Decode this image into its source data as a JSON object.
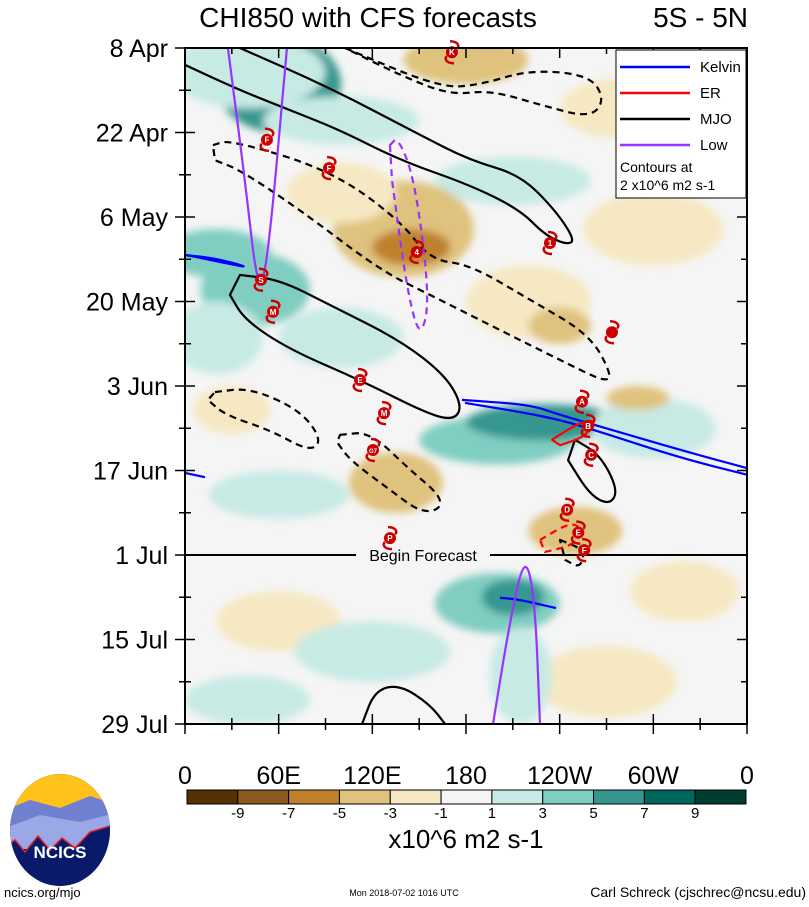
{
  "chart_data": {
    "type": "heatmap",
    "title": "CHI850 with CFS forecasts",
    "region": "5S - 5N",
    "xlabel": "",
    "ylabel": "",
    "xlim": [
      0,
      360
    ],
    "ylim_days_since_8Apr": [
      0,
      112
    ],
    "x_ticks": [
      {
        "lon": 0,
        "label": "0"
      },
      {
        "lon": 60,
        "label": "60E"
      },
      {
        "lon": 120,
        "label": "120E"
      },
      {
        "lon": 180,
        "label": "180"
      },
      {
        "lon": 240,
        "label": "120W"
      },
      {
        "lon": 300,
        "label": "60W"
      },
      {
        "lon": 360,
        "label": "0"
      }
    ],
    "y_ticks": [
      {
        "day": 0,
        "label": "8 Apr"
      },
      {
        "day": 14,
        "label": "22 Apr"
      },
      {
        "day": 28,
        "label": "6 May"
      },
      {
        "day": 42,
        "label": "20 May"
      },
      {
        "day": 56,
        "label": "3 Jun"
      },
      {
        "day": 70,
        "label": "17 Jun"
      },
      {
        "day": 84,
        "label": "1 Jul"
      },
      {
        "day": 98,
        "label": "15 Jul"
      },
      {
        "day": 112,
        "label": "29 Jul"
      }
    ],
    "forecast_start": {
      "day": 84,
      "label": "Begin Forecast"
    },
    "colorbar": {
      "units": "x10^6 m2 s-1",
      "levels": [
        "-9",
        "-7",
        "-5",
        "-3",
        "-1",
        "1",
        "3",
        "5",
        "7",
        "9"
      ],
      "colors": [
        "#543005",
        "#8c5a20",
        "#bf812d",
        "#dfc27d",
        "#f6e8c3",
        "#f5f5f5",
        "#c7eae5",
        "#80cdc1",
        "#35978f",
        "#01665e",
        "#003c30"
      ]
    },
    "legend": {
      "placement": "top-right",
      "entries": [
        {
          "label": "Kelvin",
          "color": "#0000ff"
        },
        {
          "label": "ER",
          "color": "#ff0000"
        },
        {
          "label": "MJO",
          "color": "#000000"
        },
        {
          "label": "Low",
          "color": "#9933ff"
        }
      ],
      "note_line1": "Contours at",
      "note_line2": "2 x10^6 m2 s-1"
    },
    "shaded_regions": [
      {
        "lon": 60,
        "day": 6,
        "dlon": 40,
        "dday": 8,
        "value": 6
      },
      {
        "lon": 40,
        "day": 4,
        "dlon": 50,
        "dday": 6,
        "value": 2
      },
      {
        "lon": 100,
        "day": 12,
        "dlon": 50,
        "dday": 4,
        "value": 2
      },
      {
        "lon": 20,
        "day": 34,
        "dlon": 35,
        "dday": 4,
        "value": 4
      },
      {
        "lon": 45,
        "day": 40,
        "dlon": 35,
        "dday": 6,
        "value": 4
      },
      {
        "lon": 100,
        "day": 48,
        "dlon": 40,
        "dday": 5,
        "value": 2
      },
      {
        "lon": 210,
        "day": 22,
        "dlon": 50,
        "dday": 4,
        "value": 2
      },
      {
        "lon": 20,
        "day": 48,
        "dlon": 30,
        "dday": 6,
        "value": 2
      },
      {
        "lon": 180,
        "day": 2,
        "dlon": 40,
        "dday": 4,
        "value": -4
      },
      {
        "lon": 280,
        "day": 10,
        "dlon": 40,
        "dday": 5,
        "value": -2
      },
      {
        "lon": 140,
        "day": 30,
        "dlon": 45,
        "dday": 8,
        "value": -4
      },
      {
        "lon": 145,
        "day": 33,
        "dlon": 25,
        "dday": 3,
        "value": -6
      },
      {
        "lon": 100,
        "day": 24,
        "dlon": 35,
        "dday": 5,
        "value": -2
      },
      {
        "lon": 220,
        "day": 42,
        "dlon": 40,
        "dday": 6,
        "value": -2
      },
      {
        "lon": 240,
        "day": 46,
        "dlon": 20,
        "dday": 3,
        "value": -4
      },
      {
        "lon": 300,
        "day": 30,
        "dlon": 45,
        "dday": 6,
        "value": -2
      },
      {
        "lon": 30,
        "day": 60,
        "dlon": 25,
        "dday": 4,
        "value": -2
      },
      {
        "lon": 135,
        "day": 72,
        "dlon": 30,
        "dday": 5,
        "value": -4
      },
      {
        "lon": 200,
        "day": 65,
        "dlon": 50,
        "dday": 4,
        "value": 4
      },
      {
        "lon": 230,
        "day": 62,
        "dlon": 50,
        "dday": 3,
        "value": 6
      },
      {
        "lon": 300,
        "day": 63,
        "dlon": 40,
        "dday": 5,
        "value": 2
      },
      {
        "lon": 290,
        "day": 58,
        "dlon": 20,
        "dday": 2,
        "value": -4
      },
      {
        "lon": 60,
        "day": 74,
        "dlon": 45,
        "dday": 4,
        "value": 2
      },
      {
        "lon": 250,
        "day": 80,
        "dlon": 30,
        "dday": 4,
        "value": -4
      },
      {
        "lon": 200,
        "day": 92,
        "dlon": 40,
        "dday": 5,
        "value": 4
      },
      {
        "lon": 210,
        "day": 91,
        "dlon": 20,
        "dday": 3,
        "value": 7
      },
      {
        "lon": 60,
        "day": 95,
        "dlon": 40,
        "dday": 5,
        "value": -2
      },
      {
        "lon": 320,
        "day": 90,
        "dlon": 35,
        "dday": 5,
        "value": -2
      },
      {
        "lon": 120,
        "day": 100,
        "dlon": 50,
        "dday": 5,
        "value": 2
      },
      {
        "lon": 270,
        "day": 105,
        "dlon": 45,
        "dday": 6,
        "value": -2
      },
      {
        "lon": 40,
        "day": 108,
        "dlon": 40,
        "dday": 4,
        "value": 2
      },
      {
        "lon": 215,
        "day": 104,
        "dlon": 20,
        "dday": 8,
        "value": 3
      }
    ],
    "contours": [
      {
        "type": "MJO",
        "dashed": false,
        "closed": false,
        "points": [
          [
            35.2,
            0
          ],
          [
            92.9,
            6.6
          ],
          [
            150.5,
            14.4
          ],
          [
            182.6,
            18.6
          ],
          [
            214.6,
            21.0
          ],
          [
            237.0,
            26.8
          ],
          [
            249.8,
            31.8
          ],
          [
            244.7,
            32.6
          ],
          [
            230.6,
            31.0
          ],
          [
            214.6,
            26.8
          ],
          [
            182.6,
            22.7
          ],
          [
            137.7,
            18.6
          ],
          [
            99.3,
            13.6
          ],
          [
            67.3,
            10.3
          ],
          [
            35.2,
            7.0
          ],
          [
            0,
            2.8
          ]
        ]
      },
      {
        "type": "MJO",
        "dashed": false,
        "closed": true,
        "points": [
          [
            35.2,
            37.6
          ],
          [
            60.9,
            38.4
          ],
          [
            92.9,
            42.6
          ],
          [
            137.7,
            48.4
          ],
          [
            166.6,
            54.2
          ],
          [
            177.4,
            59.1
          ],
          [
            173.0,
            61.6
          ],
          [
            157.0,
            60.8
          ],
          [
            112.1,
            55.0
          ],
          [
            67.3,
            50.0
          ],
          [
            38.4,
            45.1
          ],
          [
            28.8,
            40.9
          ]
        ]
      },
      {
        "type": "MJO",
        "dashed": false,
        "closed": true,
        "points": [
          [
            249.8,
            64.9
          ],
          [
            265.9,
            67.4
          ],
          [
            277.4,
            73.2
          ],
          [
            272.3,
            75.7
          ],
          [
            259.5,
            74.1
          ],
          [
            245.4,
            68.3
          ]
        ]
      },
      {
        "type": "MJO",
        "dashed": false,
        "closed": false,
        "points": [
          [
            113.4,
            112
          ],
          [
            121.7,
            106.4
          ],
          [
            137.7,
            105.5
          ],
          [
            157,
            108.8
          ],
          [
            166.6,
            112
          ]
        ]
      },
      {
        "type": "MJO",
        "dashed": true,
        "closed": false,
        "points": [
          [
            102.5,
            0
          ],
          [
            163.4,
            6.6
          ],
          [
            189,
            6.1
          ],
          [
            221,
            3.6
          ],
          [
            259.4,
            4.5
          ],
          [
            269,
            8.6
          ],
          [
            259.4,
            11.6
          ],
          [
            227.4,
            9.4
          ],
          [
            195.4,
            7.0
          ],
          [
            169.8,
            7.8
          ],
          [
            137.7,
            4.5
          ],
          [
            102.5,
            0
          ]
        ]
      },
      {
        "type": "MJO",
        "dashed": true,
        "closed": true,
        "points": [
          [
            17.9,
            16.1
          ],
          [
            28.8,
            15.2
          ],
          [
            92.9,
            20.2
          ],
          [
            137.7,
            28.5
          ],
          [
            157,
            35.1
          ],
          [
            182.6,
            35.9
          ],
          [
            221,
            41.7
          ],
          [
            259.4,
            47.5
          ],
          [
            273.5,
            54.2
          ],
          [
            269,
            55.3
          ],
          [
            246.6,
            52.5
          ],
          [
            214.6,
            48.4
          ],
          [
            157,
            40.9
          ],
          [
            124.9,
            36.8
          ],
          [
            73.7,
            26.8
          ],
          [
            35.2,
            20.2
          ],
          [
            19.2,
            18.6
          ]
        ]
      },
      {
        "type": "MJO",
        "dashed": true,
        "closed": true,
        "points": [
          [
            19.2,
            57.0
          ],
          [
            41.6,
            56.3
          ],
          [
            73.7,
            60
          ],
          [
            87.8,
            64.9
          ],
          [
            80.1,
            66.9
          ],
          [
            54.5,
            63.3
          ],
          [
            25.6,
            60.8
          ],
          [
            14.7,
            58.3
          ]
        ]
      },
      {
        "type": "MJO",
        "dashed": true,
        "closed": true,
        "points": [
          [
            99.3,
            64.1
          ],
          [
            118.5,
            63.6
          ],
          [
            144.1,
            69.9
          ],
          [
            163.4,
            74.1
          ],
          [
            163.4,
            76.5
          ],
          [
            150.5,
            76.9
          ],
          [
            131.3,
            73.2
          ],
          [
            105.7,
            68.3
          ],
          [
            97.4,
            65.3
          ]
        ]
      },
      {
        "type": "MJO",
        "dashed": true,
        "closed": true,
        "points": [
          [
            240.2,
            81.5
          ],
          [
            256.3,
            83.2
          ],
          [
            253.1,
            86.2
          ],
          [
            243.5,
            84.8
          ]
        ]
      },
      {
        "type": "Kelvin",
        "dashed": false,
        "closed": true,
        "points": [
          [
            0,
            34.3
          ],
          [
            19.2,
            34.8
          ],
          [
            41.6,
            36.4
          ],
          [
            28.8,
            35.8
          ],
          [
            6.4,
            34.6
          ]
        ]
      },
      {
        "type": "Kelvin",
        "dashed": false,
        "closed": false,
        "points": [
          [
            177.4,
            58.3
          ],
          [
            221,
            59.1
          ],
          [
            240.2,
            60.8
          ],
          [
            265.9,
            62.7
          ],
          [
            317.1,
            66.6
          ],
          [
            360,
            69.6
          ]
        ]
      },
      {
        "type": "Kelvin",
        "dashed": false,
        "closed": false,
        "points": [
          [
            179.4,
            58.8
          ],
          [
            214.6,
            60.3
          ],
          [
            240.2,
            61.6
          ],
          [
            265.9,
            63.6
          ],
          [
            317.1,
            67.9
          ],
          [
            360,
            70.7
          ]
        ]
      },
      {
        "type": "Kelvin",
        "dashed": false,
        "closed": false,
        "points": [
          [
            0,
            70.4
          ],
          [
            12.8,
            71.1
          ]
        ]
      },
      {
        "type": "Kelvin",
        "dashed": false,
        "closed": false,
        "points": [
          [
            201.8,
            91.1
          ],
          [
            214.6,
            91.4
          ],
          [
            237.6,
            92.8
          ]
        ]
      },
      {
        "type": "ER",
        "dashed": false,
        "closed": true,
        "points": [
          [
            235.1,
            64.9
          ],
          [
            253,
            62
          ],
          [
            263.9,
            61.6
          ],
          [
            256.3,
            64.4
          ],
          [
            240.2,
            65.8
          ]
        ]
      },
      {
        "type": "ER",
        "dashed": true,
        "closed": true,
        "points": [
          [
            227.4,
            81.5
          ],
          [
            246.6,
            78.6
          ],
          [
            254.3,
            79.6
          ],
          [
            249.8,
            82.3
          ],
          [
            230.6,
            83.5
          ]
        ]
      },
      {
        "type": "Low",
        "dashed": false,
        "closed": false,
        "points": [
          [
            27.5,
            0
          ],
          [
            38.4,
            21.9
          ],
          [
            46.8,
            40.9
          ],
          [
            53.2,
            35.1
          ],
          [
            65.3,
            0
          ]
        ]
      },
      {
        "type": "Low",
        "dashed": true,
        "closed": true,
        "points": [
          [
            131.3,
            16.1
          ],
          [
            136.4,
            14.7
          ],
          [
            147.3,
            21.9
          ],
          [
            157,
            41.7
          ],
          [
            150.6,
            48.4
          ],
          [
            142.2,
            40.1
          ],
          [
            132.6,
            21.9
          ]
        ]
      },
      {
        "type": "Low",
        "dashed": false,
        "closed": false,
        "points": [
          [
            197.3,
            112
          ],
          [
            208.2,
            94.8
          ],
          [
            217.8,
            83.7
          ],
          [
            224.2,
            91.5
          ],
          [
            227.4,
            112
          ]
        ]
      }
    ],
    "storms": [
      {
        "label": "K",
        "lon": 171,
        "day": 0.7
      },
      {
        "label": "F",
        "lon": 52.5,
        "day": 15.2
      },
      {
        "label": "F",
        "lon": 92.3,
        "day": 19.9
      },
      {
        "label": "4",
        "lon": 148.4,
        "day": 33.8
      },
      {
        "label": "1",
        "lon": 233.8,
        "day": 32.3
      },
      {
        "label": "S",
        "lon": 48.7,
        "day": 38.4
      },
      {
        "label": "M",
        "lon": 56.4,
        "day": 43.7
      },
      {
        "label": "",
        "lon": 273.5,
        "day": 47.1
      },
      {
        "label": "E",
        "lon": 112.1,
        "day": 55.0
      },
      {
        "label": "M",
        "lon": 127.5,
        "day": 60.5
      },
      {
        "label": "G7",
        "lon": 120.4,
        "day": 66.6
      },
      {
        "label": "A",
        "lon": 254.3,
        "day": 58.6
      },
      {
        "label": "B",
        "lon": 258.2,
        "day": 62.6
      },
      {
        "label": "C",
        "lon": 260.2,
        "day": 67.4
      },
      {
        "label": "D",
        "lon": 244.8,
        "day": 76.5
      },
      {
        "label": "E",
        "lon": 251.9,
        "day": 80.3
      },
      {
        "label": "F",
        "lon": 255.7,
        "day": 83.2
      },
      {
        "label": "P",
        "lon": 131.3,
        "day": 81.2
      }
    ]
  },
  "logo_text": "NCICS",
  "footer": {
    "left": "ncics.org/mjo",
    "center": "Mon 2018-07-02 1016 UTC",
    "right": "Carl Schreck (cjschrec@ncsu.edu)"
  }
}
